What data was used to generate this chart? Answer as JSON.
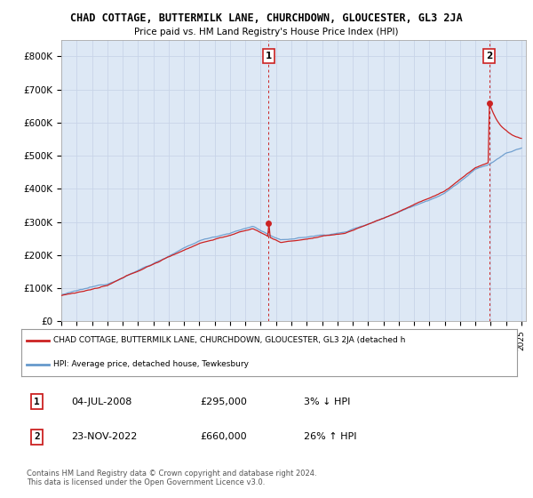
{
  "title": "CHAD COTTAGE, BUTTERMILK LANE, CHURCHDOWN, GLOUCESTER, GL3 2JA",
  "subtitle": "Price paid vs. HM Land Registry's House Price Index (HPI)",
  "yticks": [
    0,
    100000,
    200000,
    300000,
    400000,
    500000,
    600000,
    700000,
    800000
  ],
  "ytick_labels": [
    "£0",
    "£100K",
    "£200K",
    "£300K",
    "£400K",
    "£500K",
    "£600K",
    "£700K",
    "£800K"
  ],
  "ylim": [
    0,
    850000
  ],
  "hpi_color": "#6699cc",
  "price_color": "#cc2222",
  "grid_color": "#c8d4e8",
  "plot_bg_color": "#dde8f5",
  "background_color": "#ffffff",
  "sale1_date": 2008.5,
  "sale1_price": 295000,
  "sale1_label": "1",
  "sale2_date": 2022.9,
  "sale2_price": 660000,
  "sale2_label": "2",
  "legend_label_red": "CHAD COTTAGE, BUTTERMILK LANE, CHURCHDOWN, GLOUCESTER, GL3 2JA (detached h",
  "legend_label_blue": "HPI: Average price, detached house, Tewkesbury",
  "table_row1": [
    "1",
    "04-JUL-2008",
    "£295,000",
    "3% ↓ HPI"
  ],
  "table_row2": [
    "2",
    "23-NOV-2022",
    "£660,000",
    "26% ↑ HPI"
  ],
  "footer": "Contains HM Land Registry data © Crown copyright and database right 2024.\nThis data is licensed under the Open Government Licence v3.0."
}
